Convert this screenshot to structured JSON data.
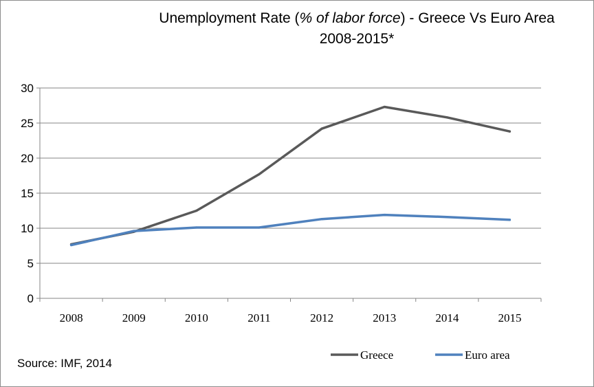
{
  "chart_data": {
    "type": "line",
    "title": {
      "prefix": "Unemployment Rate (",
      "italic": "% of labor force",
      "suffix": ") - Greece Vs Euro Area",
      "line2": "2008-2015*"
    },
    "categories": [
      "2008",
      "2009",
      "2010",
      "2011",
      "2012",
      "2013",
      "2014",
      "2015"
    ],
    "series": [
      {
        "name": "Greece",
        "color": "#595959",
        "values": [
          7.7,
          9.5,
          12.5,
          17.7,
          24.2,
          27.3,
          25.8,
          23.8
        ]
      },
      {
        "name": "Euro area",
        "color": "#4f81bd",
        "values": [
          7.6,
          9.6,
          10.1,
          10.1,
          11.3,
          11.9,
          11.6,
          11.2
        ]
      }
    ],
    "yticks": [
      "0",
      "5",
      "10",
      "15",
      "20",
      "25",
      "30"
    ],
    "ylim": [
      0,
      30
    ],
    "grid": true,
    "legend": "bottom-right",
    "gridline_color": "#868686"
  },
  "source": "Source: IMF, 2014"
}
